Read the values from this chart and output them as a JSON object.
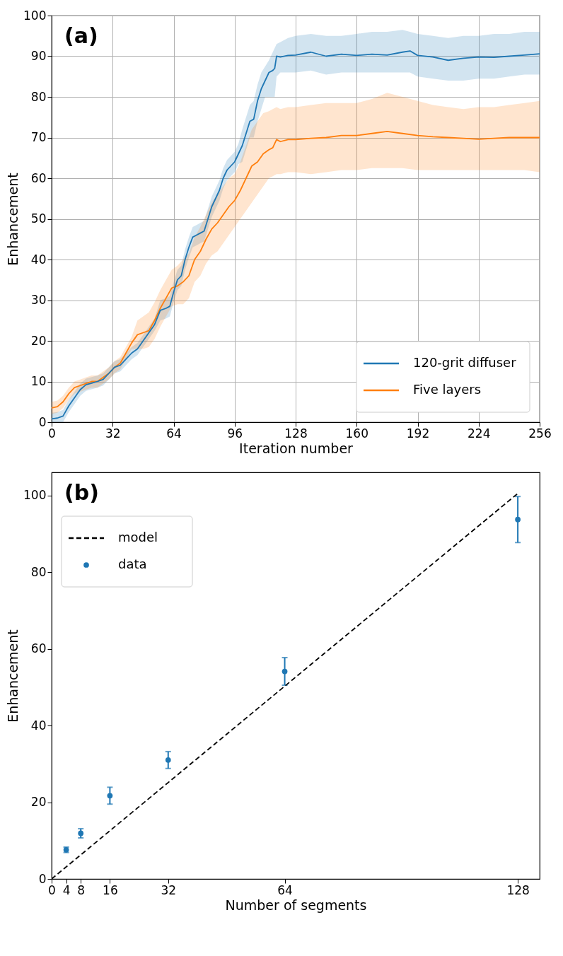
{
  "chart_data": [
    {
      "type": "line",
      "xlabel": "Iteration number",
      "ylabel": "Enhancement",
      "annotations": [
        "(a)"
      ],
      "xlim": [
        0,
        256
      ],
      "ylim": [
        0,
        100
      ],
      "xticks": [
        0,
        32,
        64,
        96,
        128,
        160,
        192,
        224,
        256
      ],
      "yticks": [
        0,
        10,
        20,
        30,
        40,
        50,
        60,
        70,
        80,
        90,
        100
      ],
      "grid": true,
      "legend": "bottom right",
      "line_style": "solid",
      "marker": "none",
      "series": [
        {
          "name": "120-grit diffuser",
          "color": "#1f77b4",
          "x": [
            0,
            3,
            6,
            9,
            12,
            15,
            18,
            21,
            24,
            27,
            30,
            33,
            36,
            39,
            42,
            45,
            48,
            51,
            54,
            57,
            60,
            62,
            64,
            66,
            68,
            70,
            72,
            74,
            76,
            78,
            80,
            82,
            84,
            86,
            88,
            90,
            92,
            94,
            96,
            98,
            100,
            102,
            104,
            106,
            108,
            110,
            112,
            114,
            116,
            117,
            118,
            120,
            124,
            128,
            136,
            144,
            152,
            160,
            168,
            176,
            184,
            188,
            192,
            200,
            208,
            216,
            224,
            232,
            240,
            248,
            256
          ],
          "values": [
            0.8,
            1,
            1.5,
            4,
            6,
            8,
            9.2,
            9.6,
            10,
            10.5,
            12,
            13.5,
            14,
            15.5,
            17,
            18,
            20,
            22,
            24,
            27.5,
            28,
            28.5,
            32,
            35,
            36,
            40,
            43,
            45.5,
            46,
            46.5,
            47,
            50,
            53,
            55,
            57,
            60,
            62,
            63,
            64,
            66,
            68,
            71,
            74,
            74.5,
            79,
            82,
            84,
            86,
            86.5,
            87,
            90,
            89.8,
            90.2,
            90.3,
            91,
            90,
            90.5,
            90.2,
            90.5,
            90.3,
            91,
            91.3,
            90.2,
            89.8,
            89,
            89.5,
            89.8,
            89.7,
            90,
            90.3,
            90.6
          ],
          "lower": [
            0,
            0,
            0,
            2.5,
            4.5,
            6.5,
            7.7,
            8.1,
            8.5,
            9,
            10.5,
            12,
            12.5,
            14,
            15.5,
            16.5,
            18.5,
            20.5,
            22.5,
            25,
            25.5,
            26,
            29.5,
            32.5,
            33.5,
            37.5,
            40.5,
            43,
            43.5,
            44,
            44.5,
            47.5,
            50.5,
            52.5,
            54.5,
            57.5,
            59.5,
            60.5,
            61.5,
            63.5,
            64,
            67,
            70,
            70,
            74,
            77,
            80,
            80,
            80,
            80,
            85,
            86,
            86,
            86,
            86.5,
            85.5,
            86,
            86,
            86,
            86,
            86,
            86,
            85,
            84.5,
            84,
            84,
            84.5,
            84.5,
            85,
            85.5,
            85.5
          ],
          "upper": [
            2.3,
            2.5,
            3,
            5.5,
            7.5,
            9.5,
            10.7,
            11.1,
            11.5,
            12,
            13.5,
            15,
            15.5,
            17,
            18.5,
            19.5,
            21.5,
            23.5,
            25.5,
            30,
            30.5,
            31,
            34.5,
            37.5,
            38.5,
            42.5,
            45.5,
            48,
            48.5,
            49,
            49.5,
            52.5,
            55.5,
            57.5,
            59.5,
            62.5,
            64.5,
            65.5,
            66.5,
            68.5,
            72,
            75,
            78,
            79,
            83,
            86,
            87.5,
            89,
            91,
            92,
            93,
            93.5,
            94.5,
            95,
            95.5,
            95,
            95,
            95.5,
            96,
            96,
            96.5,
            96,
            95.5,
            95,
            94.5,
            95,
            95,
            95.5,
            95.5,
            96,
            96
          ]
        },
        {
          "name": "Five layers",
          "color": "#ff7f0e",
          "x": [
            0,
            3,
            6,
            9,
            12,
            15,
            18,
            21,
            24,
            27,
            30,
            33,
            36,
            39,
            42,
            45,
            48,
            51,
            54,
            57,
            60,
            63,
            66,
            69,
            72,
            75,
            78,
            81,
            84,
            87,
            90,
            93,
            96,
            99,
            102,
            105,
            108,
            111,
            114,
            116,
            118,
            120,
            124,
            128,
            136,
            144,
            152,
            160,
            168,
            176,
            184,
            192,
            200,
            208,
            216,
            224,
            232,
            240,
            248,
            256
          ],
          "values": [
            3.5,
            3.8,
            5,
            7,
            8.5,
            9,
            9.5,
            10,
            10,
            11,
            12,
            13.5,
            14.5,
            17,
            19.5,
            21.5,
            22,
            22.5,
            25,
            28,
            30.5,
            33,
            33.5,
            34.5,
            36,
            40,
            42,
            45,
            47.5,
            49,
            51,
            53,
            54.5,
            57,
            60,
            63,
            64,
            66,
            67,
            67.5,
            69.5,
            69,
            69.5,
            69.5,
            69.8,
            70,
            70.5,
            70.5,
            71,
            71.5,
            71,
            70.5,
            70.2,
            70,
            69.8,
            69.6,
            69.8,
            70,
            70,
            70
          ],
          "lower": [
            2,
            2.3,
            3.5,
            5.5,
            7,
            7.5,
            8,
            8.5,
            8.5,
            9.5,
            10.5,
            12,
            13,
            15.5,
            18,
            18,
            18,
            18.5,
            20.5,
            23.5,
            26,
            28.5,
            29,
            29,
            30.5,
            34.5,
            36,
            39,
            41,
            42,
            44,
            46,
            48,
            50,
            52,
            54,
            56,
            58,
            60,
            60.5,
            61,
            61,
            61.5,
            61.5,
            61,
            61.5,
            62,
            62,
            62.5,
            62.5,
            62.5,
            62,
            62,
            62,
            62,
            62,
            62,
            62,
            62,
            61.5
          ],
          "upper": [
            5,
            5.3,
            6.5,
            8.5,
            10,
            10.5,
            11,
            11.5,
            11.5,
            12.5,
            13.5,
            15,
            16,
            18.5,
            21,
            25,
            26,
            27,
            29.5,
            32.5,
            35,
            37.5,
            38.5,
            40,
            41.5,
            45.5,
            48,
            51,
            54,
            56,
            58,
            60,
            61,
            64,
            68,
            72,
            74,
            76,
            76.5,
            77,
            77.5,
            77,
            77.5,
            77.5,
            78,
            78.5,
            78.5,
            78.5,
            79.5,
            81,
            80,
            79,
            78,
            77.5,
            77,
            77.5,
            77.5,
            78,
            78.5,
            79
          ]
        }
      ]
    },
    {
      "type": "scatter",
      "xlabel": "Number of segments",
      "ylabel": "Enhancement",
      "annotations": [
        "(b)"
      ],
      "xlim": [
        0,
        134
      ],
      "ylim": [
        0,
        106
      ],
      "xticks": [
        0,
        4,
        8,
        16,
        32,
        64,
        128
      ],
      "yticks": [
        0,
        20,
        40,
        60,
        80,
        100
      ],
      "grid": false,
      "legend": "top left",
      "series": [
        {
          "name": "model",
          "type": "line",
          "color": "#000000",
          "line_style": "dashed",
          "x": [
            0,
            128
          ],
          "values": [
            0,
            100.5
          ]
        },
        {
          "name": "data",
          "type": "scatter",
          "color": "#1f77b4",
          "marker": "circle",
          "x": [
            4,
            8,
            16,
            32,
            64,
            128
          ],
          "values": [
            7.6,
            11.9,
            21.7,
            31,
            54.1,
            93.7
          ],
          "errors": [
            0.7,
            1.2,
            2.2,
            2.2,
            3.6,
            6
          ]
        }
      ]
    }
  ]
}
